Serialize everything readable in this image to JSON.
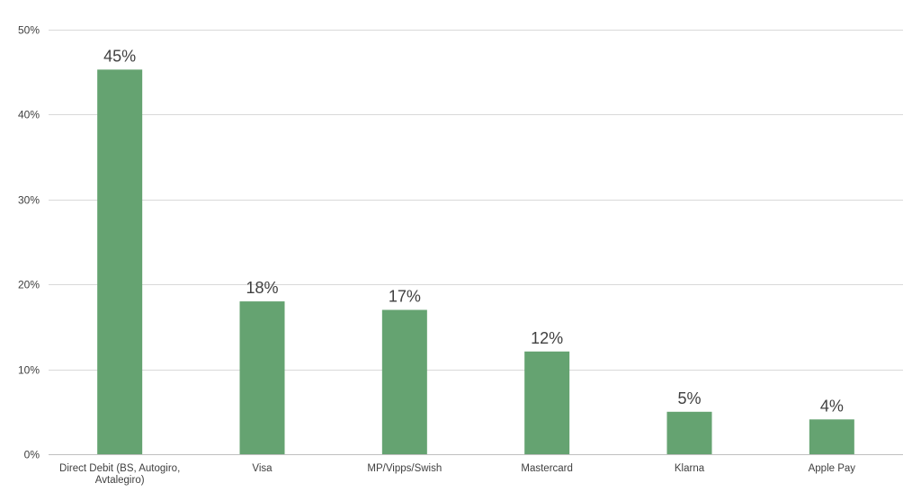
{
  "chart_data": {
    "type": "bar",
    "categories": [
      [
        "Direct Debit (BS, Autogiro,",
        "Avtalegiro)"
      ],
      [
        "Visa"
      ],
      [
        "MP/Vipps/Swish"
      ],
      [
        "Mastercard"
      ],
      [
        "Klarna"
      ],
      [
        "Apple Pay"
      ]
    ],
    "values": [
      45.3,
      18.0,
      17.0,
      12.1,
      5.0,
      4.1
    ],
    "data_labels": [
      "45%",
      "18%",
      "17%",
      "12%",
      "5%",
      "4%"
    ],
    "y_ticks": [
      0,
      10,
      20,
      30,
      40,
      50
    ],
    "y_tick_labels": [
      "0%",
      "10%",
      "20%",
      "30%",
      "40%",
      "50%"
    ],
    "ylim": [
      0,
      50
    ],
    "grid": true,
    "legend": "none",
    "bar_color": "#65a371",
    "title": "",
    "xlabel": "",
    "ylabel": ""
  }
}
